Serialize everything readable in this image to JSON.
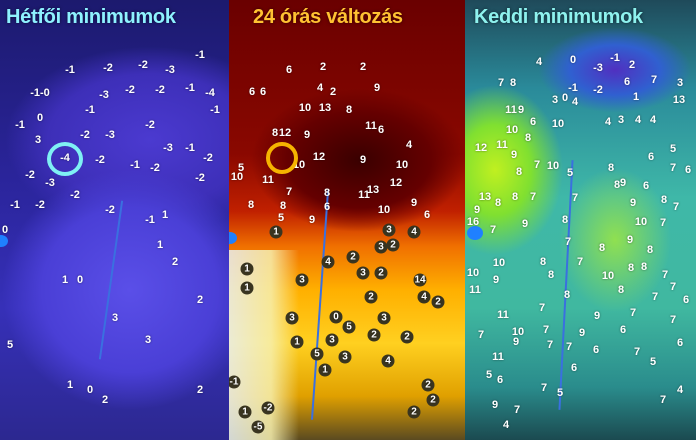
{
  "panels": [
    {
      "title": "Hétfői minimumok",
      "title_color": "#8ef2ff",
      "highlight_color": "#7ff0f4",
      "values": [
        "-1",
        "-2",
        "-2",
        "-1-0",
        "-3",
        "-2",
        "-2",
        "-1",
        "-4",
        "0",
        "-1",
        "-2",
        "-3",
        "3",
        "-4",
        "-2",
        "-3",
        "-1",
        "-2",
        "-3",
        "-1",
        "-2",
        "-2",
        "-2",
        "-2",
        "-1",
        "-2",
        "1",
        "-1",
        "0",
        "1",
        "0",
        "3",
        "5",
        "1",
        "2",
        "2",
        "1",
        "0",
        "2",
        "3",
        "2",
        "-2",
        "-1",
        "-1",
        "-2",
        "-3",
        "-1"
      ]
    },
    {
      "title": "24 órás változás",
      "title_color": "#ffc232",
      "highlight_color": "#f5b400",
      "values": [
        "6",
        "2",
        "2",
        "6",
        "6",
        "4",
        "2",
        "9",
        "10",
        "13",
        "8",
        "8",
        "12",
        "9",
        "11",
        "6",
        "4",
        "5",
        "10",
        "11",
        "10",
        "12",
        "9",
        "10",
        "7",
        "8",
        "11",
        "13",
        "12",
        "10",
        "9",
        "6",
        "8",
        "8",
        "6",
        "5",
        "9",
        "1",
        "3",
        "4",
        "3",
        "2",
        "2",
        "1",
        "4",
        "3",
        "3",
        "2",
        "14",
        "1",
        "2",
        "4",
        "2",
        "3",
        "5",
        "3",
        "0",
        "2",
        "2",
        "1",
        "3",
        "5",
        "3",
        "4",
        "1",
        "-1",
        "2",
        "2",
        "2",
        "-2",
        "-5",
        "1"
      ]
    },
    {
      "title": "Keddi minimumok",
      "title_color": "#8ef2ee",
      "values": [
        "4",
        "0",
        "-1",
        "-3",
        "2",
        "7",
        "8",
        "6",
        "7",
        "3",
        "-1",
        "-2",
        "1",
        "13",
        "11",
        "9",
        "3",
        "0",
        "4",
        "6",
        "10",
        "4",
        "3",
        "4",
        "4",
        "10",
        "8",
        "12",
        "11",
        "9",
        "7",
        "8",
        "10",
        "5",
        "8",
        "6",
        "5",
        "7",
        "6",
        "13",
        "8",
        "8",
        "9",
        "7",
        "7",
        "8",
        "9",
        "6",
        "9",
        "8",
        "7",
        "16",
        "7",
        "9",
        "8",
        "10",
        "7",
        "7",
        "8",
        "9",
        "8",
        "10",
        "10",
        "9",
        "8",
        "8",
        "7",
        "10",
        "8",
        "8",
        "7",
        "11",
        "8",
        "8",
        "7",
        "7",
        "6",
        "11",
        "7",
        "9",
        "7",
        "10",
        "9",
        "7",
        "9",
        "6",
        "7",
        "6",
        "7",
        "11",
        "7",
        "7",
        "6",
        "7",
        "5",
        "6",
        "5",
        "6",
        "7",
        "5",
        "4",
        "9",
        "7",
        "4",
        "7"
      ]
    }
  ]
}
